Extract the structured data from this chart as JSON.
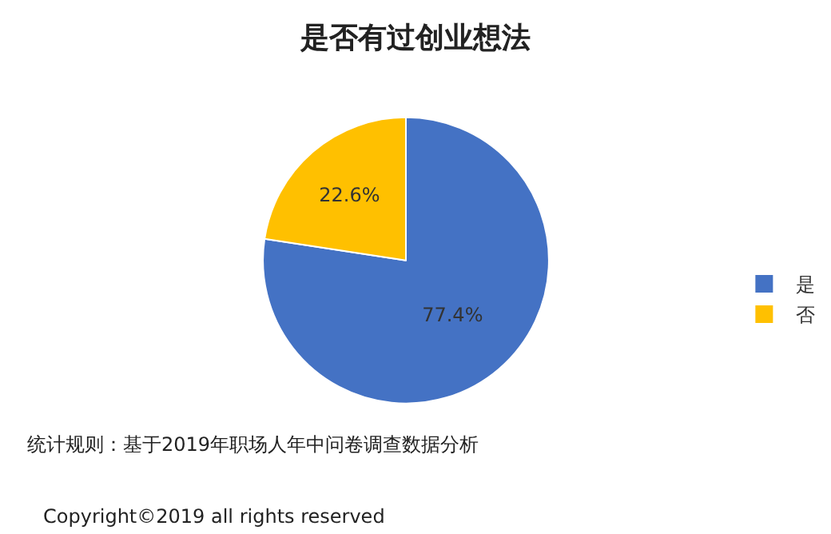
{
  "chart_data": {
    "type": "pie",
    "title": "是否有过创业想法",
    "categories": [
      "是",
      "否"
    ],
    "values": [
      77.4,
      22.6
    ],
    "colors": [
      "#4472c4",
      "#ffc000"
    ],
    "value_labels": [
      "77.4%",
      "22.6%"
    ],
    "legend": "right",
    "annotations": [
      "统计规则：基于2019年职场人年中问卷调查数据分析",
      "Copyright©2019 all rights reserved"
    ]
  }
}
